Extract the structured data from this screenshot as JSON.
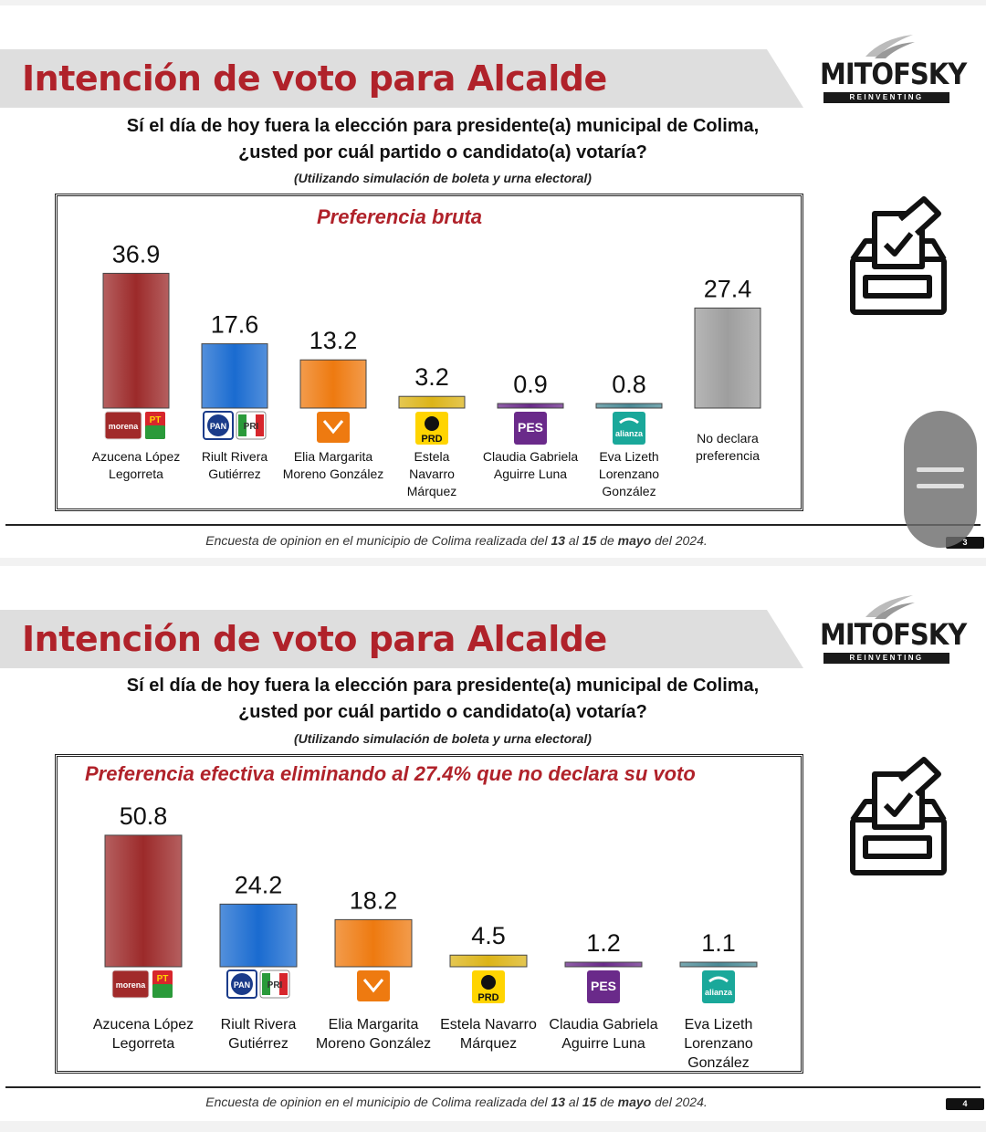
{
  "slides": [
    {
      "title": "Intención de voto para Alcalde",
      "logo": {
        "name": "MITOFSKY",
        "tagline": "REINVENTING RESEARCH"
      },
      "question": [
        "Sí el día de hoy fuera la elección para presidente(a) municipal de Colima,",
        "¿usted por cuál partido o candidato(a) votaría?"
      ],
      "note": "(Utilizando simulación de boleta y urna electoral)",
      "footer": {
        "prefix": "Encuesta de opinion en el municipio de Colima realizada del ",
        "d1": "13",
        "mid1": " al ",
        "d2": "15",
        "mid2": " de ",
        "month": "mayo",
        "suffix": " del 2024."
      },
      "page": "3"
    },
    {
      "title": "Intención de voto para Alcalde",
      "logo": {
        "name": "MITOFSKY",
        "tagline": "REINVENTING RESEARCH"
      },
      "question": [
        "Sí el día de hoy fuera la elección para presidente(a) municipal de Colima,",
        "¿usted por cuál partido o candidato(a) votaría?"
      ],
      "note": "(Utilizando simulación de boleta y urna electoral)",
      "footer": {
        "prefix": "Encuesta de opinion en el municipio de Colima realizada del ",
        "d1": "13",
        "mid1": " al ",
        "d2": "15",
        "mid2": " de ",
        "month": "mayo",
        "suffix": " del 2024."
      },
      "page": "4"
    }
  ],
  "chart_data": [
    {
      "type": "bar",
      "title": "Preferencia bruta",
      "categories": [
        [
          "Azucena López",
          "Legorreta"
        ],
        [
          "Riult Rivera",
          "Gutiérrez"
        ],
        [
          "Elia Margarita",
          "Moreno González"
        ],
        [
          "Estela",
          "Navarro",
          "Márquez"
        ],
        [
          "Claudia Gabriela",
          "Aguirre Luna"
        ],
        [
          "Eva Lizeth",
          "Lorenzano",
          "González"
        ],
        [
          "No declara",
          "preferencia"
        ]
      ],
      "values": [
        36.9,
        17.6,
        13.2,
        3.2,
        0.9,
        0.8,
        27.4
      ],
      "value_labels": [
        "36.9",
        "17.6",
        "13.2",
        "3.2",
        "0.9",
        "0.8",
        "27.4"
      ],
      "parties": [
        [
          "morena",
          "PT"
        ],
        [
          "PAN",
          "PRI"
        ],
        [
          "MC"
        ],
        [
          "PRD"
        ],
        [
          "PES"
        ],
        [
          "alianza"
        ],
        []
      ],
      "colors": [
        "#9c2a2a",
        "#1a6bd0",
        "#ee7a10",
        "#dcb418",
        "#6a2a8a",
        "#4a8a96",
        "#9e9e9e"
      ],
      "ylim": [
        0,
        40
      ]
    },
    {
      "type": "bar",
      "title": "Preferencia efectiva eliminando al 27.4% que no declara su voto",
      "categories": [
        [
          "Azucena López",
          "Legorreta"
        ],
        [
          "Riult Rivera",
          "Gutiérrez"
        ],
        [
          "Elia Margarita",
          "Moreno González"
        ],
        [
          "Estela Navarro",
          "Márquez"
        ],
        [
          "Claudia Gabriela",
          "Aguirre Luna"
        ],
        [
          "Eva Lizeth",
          "Lorenzano",
          "González"
        ]
      ],
      "values": [
        50.8,
        24.2,
        18.2,
        4.5,
        1.2,
        1.1
      ],
      "value_labels": [
        "50.8",
        "24.2",
        "18.2",
        "4.5",
        "1.2",
        "1.1"
      ],
      "parties": [
        [
          "morena",
          "PT"
        ],
        [
          "PAN",
          "PRI"
        ],
        [
          "MC"
        ],
        [
          "PRD"
        ],
        [
          "PES"
        ],
        [
          "alianza"
        ]
      ],
      "colors": [
        "#9c2a2a",
        "#1a6bd0",
        "#ee7a10",
        "#dcb418",
        "#6a2a8a",
        "#4a8a96"
      ],
      "ylim": [
        0,
        55
      ]
    }
  ]
}
